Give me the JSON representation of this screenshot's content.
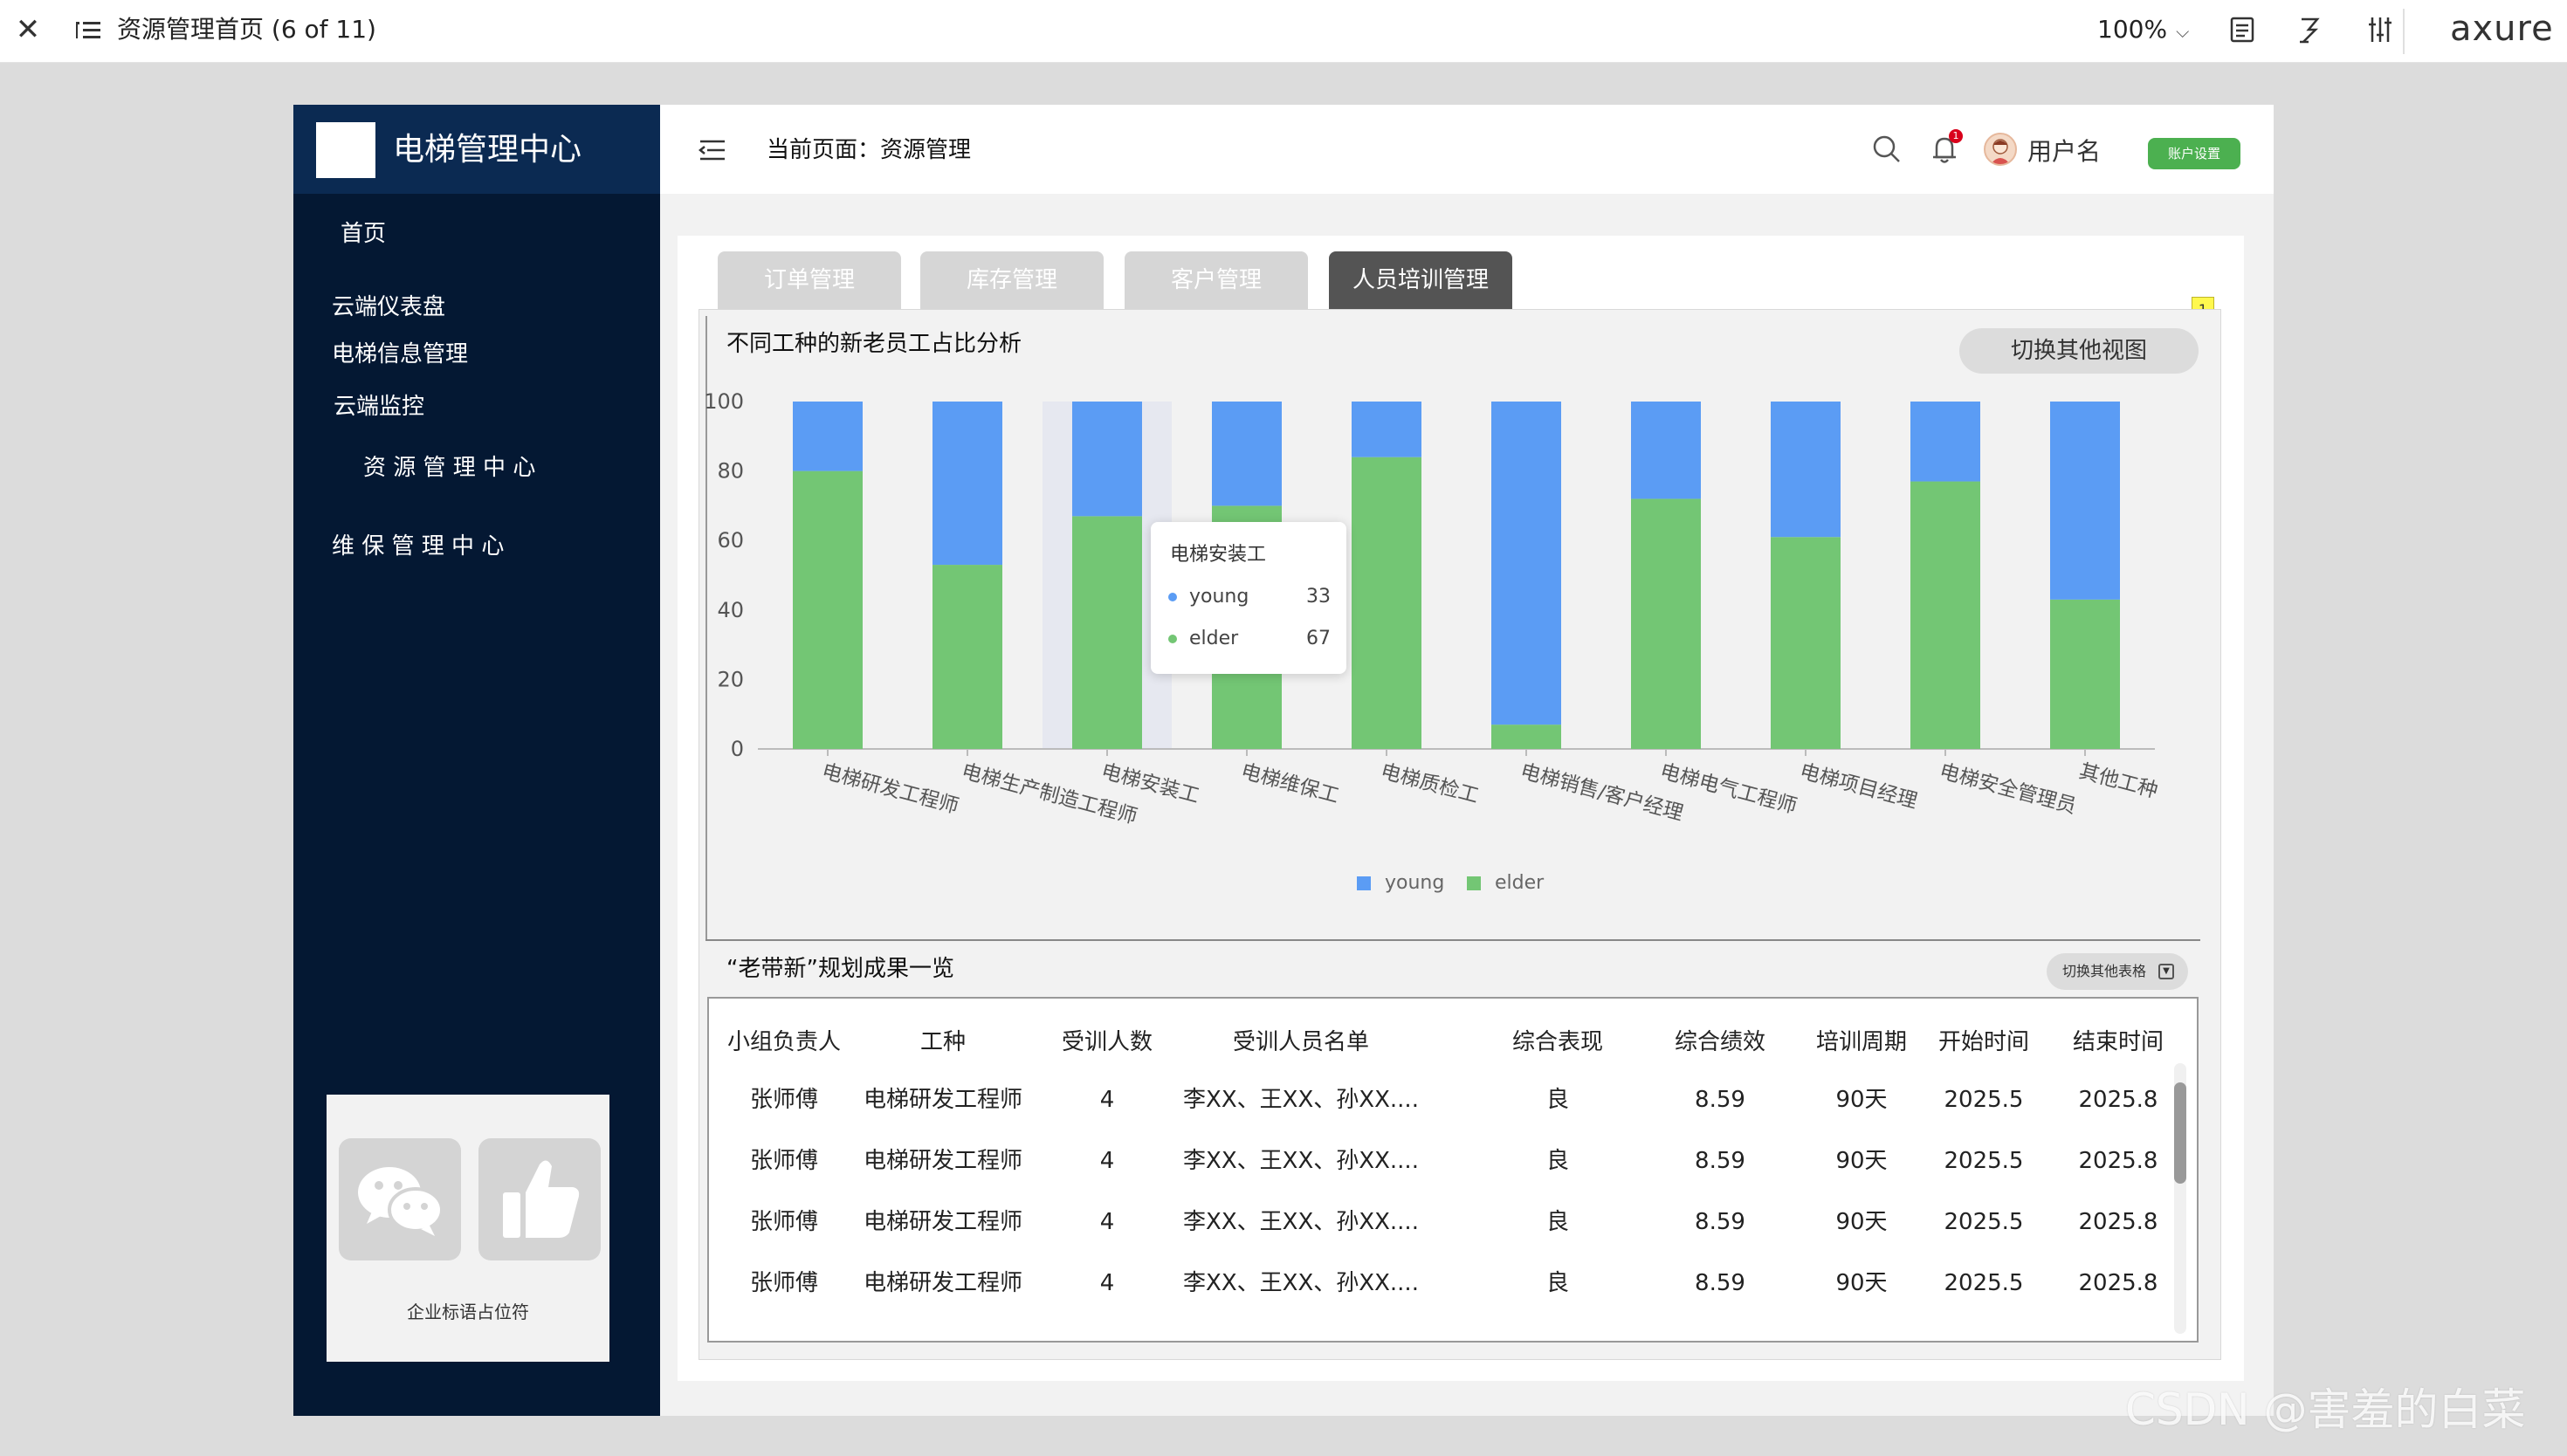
{
  "toolbar": {
    "title": "资源管理首页 (6 of 11)",
    "zoom": "100%",
    "logo": "axure"
  },
  "brand": {
    "name": "电梯管理中心"
  },
  "sidebar": {
    "items": [
      {
        "label": "首页"
      },
      {
        "label": "云端仪表盘"
      },
      {
        "label": "电梯信息管理"
      },
      {
        "label": "云端监控"
      },
      {
        "label": "资 源 管 理 中 心"
      },
      {
        "label": "维 保 管 理 中 心"
      }
    ],
    "ad_caption": "企业标语占位符"
  },
  "header": {
    "breadcrumb": "当前页面：资源管理",
    "username": "用户名",
    "bell_count": "1",
    "account_button": "账户设置"
  },
  "tabs": [
    {
      "label": "订单管理",
      "active": false
    },
    {
      "label": "库存管理",
      "active": false
    },
    {
      "label": "客户管理",
      "active": false
    },
    {
      "label": "人员培训管理",
      "active": true
    }
  ],
  "note_badge": "1",
  "chart_section": {
    "title": "不同工种的新老员工占比分析",
    "switch_button": "切换其他视图"
  },
  "chart_data": {
    "type": "bar",
    "stacked": true,
    "categories": [
      "电梯研发工程师",
      "电梯生产制造工程师",
      "电梯安装工",
      "电梯维保工",
      "电梯质检工",
      "电梯销售/客户经理",
      "电梯电气工程师",
      "电梯项目经理",
      "电梯安全管理员",
      "其他工种"
    ],
    "series": [
      {
        "name": "elder",
        "color": "#73c674",
        "values": [
          80,
          53,
          67,
          70,
          84,
          7,
          72,
          61,
          77,
          43
        ]
      },
      {
        "name": "young",
        "color": "#5b9cf4",
        "values": [
          20,
          47,
          33,
          30,
          16,
          93,
          28,
          39,
          23,
          57
        ]
      }
    ],
    "ylim": [
      0,
      100
    ],
    "yticks": [
      "0",
      "20",
      "40",
      "60",
      "80",
      "100"
    ],
    "grid": false,
    "legend": "bottom",
    "highlight_index": 2
  },
  "tooltip": {
    "title": "电梯安装工",
    "rows": [
      {
        "name": "young",
        "value": "33",
        "color": "#5b9cf4"
      },
      {
        "name": "elder",
        "value": "67",
        "color": "#73c674"
      }
    ]
  },
  "legend": [
    {
      "name": "young",
      "color": "#5b9cf4"
    },
    {
      "name": "elder",
      "color": "#73c674"
    }
  ],
  "table_section": {
    "title": "“老带新”规划成果一览",
    "switch_button": "切换其他表格"
  },
  "table": {
    "headers": [
      "小组负责人",
      "工种",
      "受训人数",
      "受训人员名单",
      "综合表现",
      "综合绩效",
      "培训周期",
      "开始时间",
      "结束时间"
    ],
    "rows": [
      [
        "张师傅",
        "电梯研发工程师",
        "4",
        "李XX、王XX、孙XX....",
        "良",
        "8.59",
        "90天",
        "2025.5",
        "2025.8"
      ],
      [
        "张师傅",
        "电梯研发工程师",
        "4",
        "李XX、王XX、孙XX....",
        "良",
        "8.59",
        "90天",
        "2025.5",
        "2025.8"
      ],
      [
        "张师傅",
        "电梯研发工程师",
        "4",
        "李XX、王XX、孙XX....",
        "良",
        "8.59",
        "90天",
        "2025.5",
        "2025.8"
      ],
      [
        "张师傅",
        "电梯研发工程师",
        "4",
        "李XX、王XX、孙XX....",
        "良",
        "8.59",
        "90天",
        "2025.5",
        "2025.8"
      ]
    ]
  },
  "watermark": "CSDN @害羞的白菜"
}
